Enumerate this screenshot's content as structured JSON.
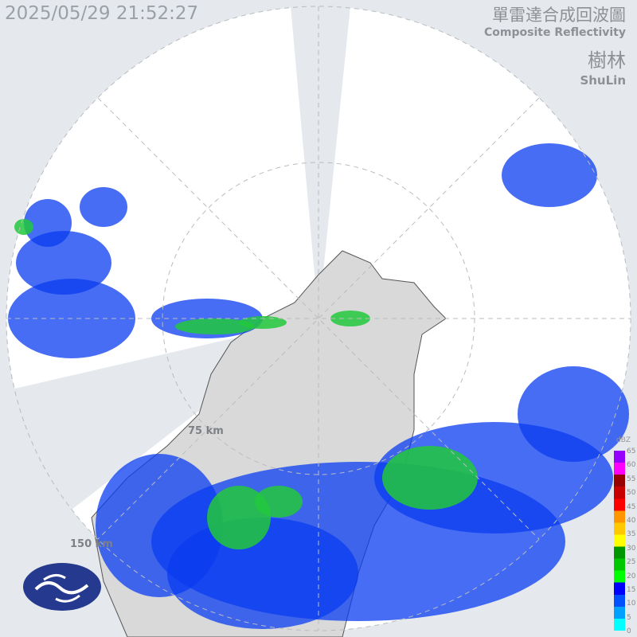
{
  "timestamp": "2025/05/29 21:52:27",
  "title": {
    "zh": "單雷達合成回波圖",
    "en": "Composite Reflectivity"
  },
  "station": {
    "zh": "樹林",
    "en": "ShuLin"
  },
  "range_labels": [
    "75 km",
    "150 km"
  ],
  "legend": {
    "unit": "dBZ",
    "ticks": [
      "65",
      "60",
      "55",
      "50",
      "45",
      "40",
      "35",
      "30",
      "25",
      "20",
      "15",
      "10",
      "5",
      "0"
    ],
    "colors": [
      "#00ffff",
      "#00a0ff",
      "#0050ff",
      "#0000ff",
      "#00ff00",
      "#00c800",
      "#009600",
      "#ffff00",
      "#ffc800",
      "#ff9600",
      "#ff0000",
      "#c80000",
      "#960000",
      "#ff00ff",
      "#9600ff"
    ]
  },
  "colors": {
    "background": "#e5e9ed",
    "radar_area": "#ffffff",
    "land": "#d9d9d9",
    "echo_weak": "#0a3cf0",
    "echo_mid": "#22c83c"
  },
  "logo": "CWA logo"
}
